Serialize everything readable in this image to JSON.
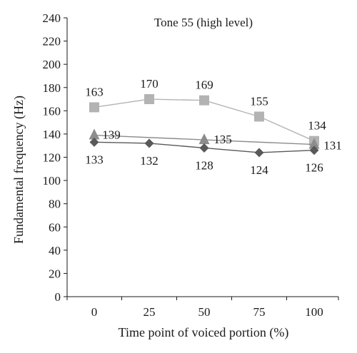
{
  "chart_data": {
    "type": "line",
    "title": "Tone 55 (high level)",
    "xlabel": "Time point of voiced portion (%)",
    "ylabel": "Fundamental frequency (Hz)",
    "x": [
      0,
      25,
      50,
      75,
      100
    ],
    "x_tick_labels": [
      "0",
      "25",
      "50",
      "75",
      "100"
    ],
    "ylim": [
      0,
      240
    ],
    "y_ticks": [
      0,
      20,
      40,
      60,
      80,
      100,
      120,
      140,
      160,
      180,
      200,
      220,
      240
    ],
    "grid": false,
    "legend": "none",
    "series": [
      {
        "marker": "square",
        "color": "#b3b3b3",
        "values": [
          163,
          170,
          169,
          155,
          134
        ],
        "labels": [
          "163",
          "170",
          "169",
          "155",
          "134"
        ]
      },
      {
        "marker": "triangle",
        "color": "#8c8c8c",
        "values": [
          139,
          null,
          135,
          null,
          131
        ],
        "labels": [
          "139",
          null,
          "135",
          null,
          "131"
        ]
      },
      {
        "marker": "diamond",
        "color": "#595959",
        "values": [
          133,
          132,
          128,
          124,
          126
        ],
        "labels": [
          "133",
          "132",
          "128",
          "124",
          "126"
        ]
      }
    ]
  }
}
